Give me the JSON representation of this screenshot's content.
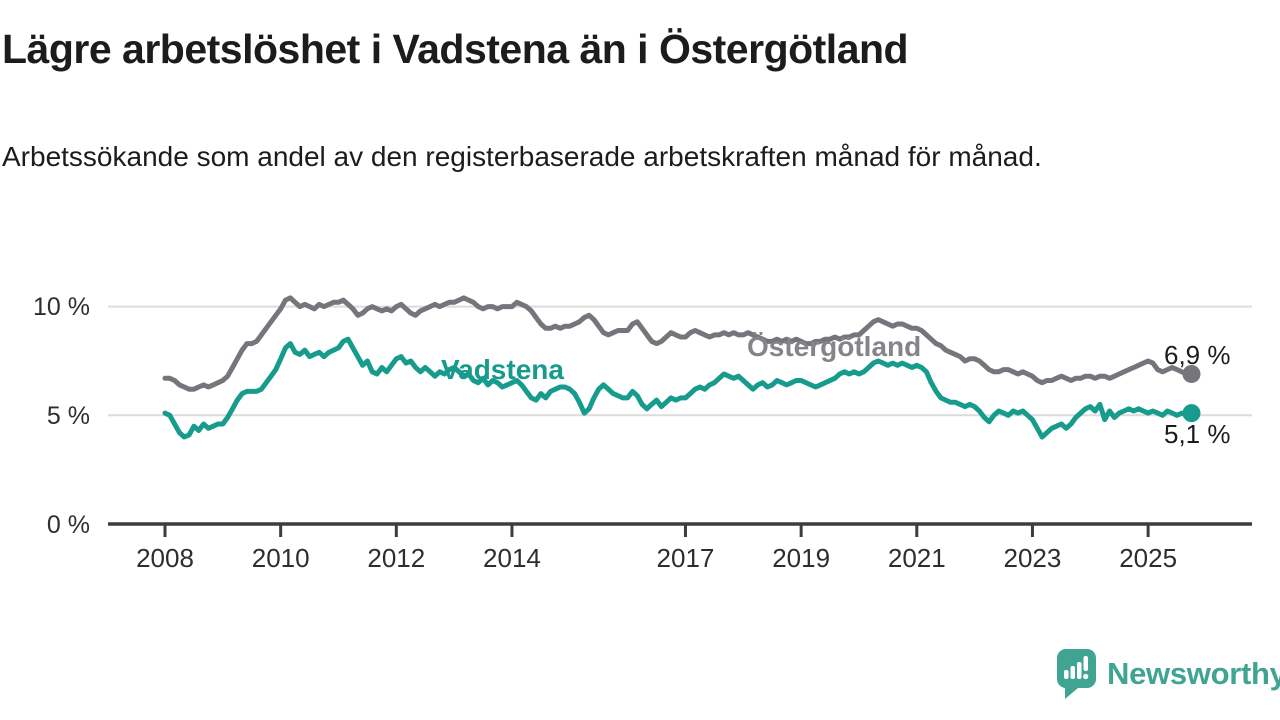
{
  "header": {
    "title": "Lägre arbetslöshet i Vadstena än i Östergötland",
    "subtitle": "Arbetssökande som andel av den registerbaserade arbetskraften månad för månad."
  },
  "branding": {
    "logo_text": "Newsworthy",
    "logo_icon": "speech-bubble-bar-chart-icon",
    "logo_color": "#3fa492"
  },
  "colors": {
    "vadstena": "#169b8c",
    "ostergotland_line": "#76757b",
    "ostergotland_label": "#85848b",
    "gridline": "#dcdcdc",
    "axis": "#3d3d3d",
    "text": "#1c1c1c"
  },
  "chart_data": {
    "type": "line",
    "unit": "%",
    "frequency": "monthly",
    "x_start": "2008-01",
    "x_end": "2025-10",
    "ylim": [
      0,
      11
    ],
    "grid_values": [
      5,
      10
    ],
    "y_tick_labels": [
      "10 %",
      "5 %",
      "0 %"
    ],
    "x_tick_years": [
      2008,
      2010,
      2012,
      2014,
      2017,
      2019,
      2021,
      2023,
      2025
    ],
    "x_tick_labels": [
      "2008",
      "2010",
      "2012",
      "2014",
      "2017",
      "2019",
      "2021",
      "2023",
      "2025"
    ],
    "series": [
      {
        "name": "Östergötland",
        "end_label": "6,9 %",
        "end_value": 6.9,
        "values": [
          6.7,
          6.7,
          6.6,
          6.4,
          6.3,
          6.2,
          6.2,
          6.3,
          6.4,
          6.3,
          6.4,
          6.5,
          6.6,
          6.8,
          7.2,
          7.6,
          8.0,
          8.3,
          8.3,
          8.4,
          8.7,
          9.0,
          9.3,
          9.6,
          9.9,
          10.3,
          10.4,
          10.2,
          10.0,
          10.1,
          10.0,
          9.9,
          10.1,
          10.0,
          10.1,
          10.2,
          10.2,
          10.3,
          10.1,
          9.9,
          9.6,
          9.7,
          9.9,
          10.0,
          9.9,
          9.8,
          9.9,
          9.8,
          10.0,
          10.1,
          9.9,
          9.7,
          9.6,
          9.8,
          9.9,
          10.0,
          10.1,
          10.0,
          10.1,
          10.2,
          10.2,
          10.3,
          10.4,
          10.3,
          10.2,
          10.0,
          9.9,
          10.0,
          10.0,
          9.9,
          10.0,
          10.0,
          10.0,
          10.2,
          10.1,
          10.0,
          9.8,
          9.5,
          9.2,
          9.0,
          9.0,
          9.1,
          9.0,
          9.1,
          9.1,
          9.2,
          9.3,
          9.5,
          9.6,
          9.4,
          9.1,
          8.8,
          8.7,
          8.8,
          8.9,
          8.9,
          8.9,
          9.2,
          9.3,
          9.0,
          8.7,
          8.4,
          8.3,
          8.4,
          8.6,
          8.8,
          8.7,
          8.6,
          8.6,
          8.8,
          8.9,
          8.8,
          8.7,
          8.6,
          8.7,
          8.7,
          8.8,
          8.7,
          8.8,
          8.7,
          8.7,
          8.8,
          8.7,
          8.6,
          8.5,
          8.4,
          8.4,
          8.5,
          8.4,
          8.5,
          8.4,
          8.5,
          8.4,
          8.3,
          8.3,
          8.4,
          8.4,
          8.5,
          8.5,
          8.6,
          8.5,
          8.6,
          8.6,
          8.7,
          8.7,
          8.9,
          9.1,
          9.3,
          9.4,
          9.3,
          9.2,
          9.1,
          9.2,
          9.2,
          9.1,
          9.0,
          9.0,
          8.9,
          8.7,
          8.5,
          8.3,
          8.2,
          8.0,
          7.9,
          7.8,
          7.7,
          7.5,
          7.6,
          7.6,
          7.5,
          7.3,
          7.1,
          7.0,
          7.0,
          7.1,
          7.1,
          7.0,
          6.9,
          7.0,
          6.9,
          6.8,
          6.6,
          6.5,
          6.6,
          6.6,
          6.7,
          6.8,
          6.7,
          6.6,
          6.7,
          6.7,
          6.8,
          6.8,
          6.7,
          6.8,
          6.8,
          6.7,
          6.8,
          6.9,
          7.0,
          7.1,
          7.2,
          7.3,
          7.4,
          7.5,
          7.4,
          7.1,
          7.0,
          7.1,
          7.2,
          7.1,
          7.0,
          6.9,
          6.9
        ]
      },
      {
        "name": "Vadstena",
        "end_label": "5,1 %",
        "end_value": 5.1,
        "values": [
          5.1,
          5.0,
          4.6,
          4.2,
          4.0,
          4.1,
          4.5,
          4.3,
          4.6,
          4.4,
          4.5,
          4.6,
          4.6,
          4.9,
          5.3,
          5.7,
          6.0,
          6.1,
          6.1,
          6.1,
          6.2,
          6.5,
          6.8,
          7.1,
          7.6,
          8.1,
          8.3,
          7.9,
          7.8,
          8.0,
          7.7,
          7.8,
          7.9,
          7.7,
          7.9,
          8.0,
          8.1,
          8.4,
          8.5,
          8.1,
          7.7,
          7.3,
          7.5,
          7.0,
          6.9,
          7.2,
          7.0,
          7.3,
          7.6,
          7.7,
          7.4,
          7.5,
          7.2,
          7.0,
          7.2,
          7.0,
          6.8,
          7.0,
          6.9,
          7.1,
          7.2,
          7.0,
          6.8,
          6.9,
          6.6,
          6.5,
          6.7,
          6.4,
          6.6,
          6.5,
          6.3,
          6.4,
          6.5,
          6.6,
          6.4,
          6.1,
          5.8,
          5.7,
          6.0,
          5.8,
          6.1,
          6.2,
          6.3,
          6.3,
          6.2,
          6.0,
          5.6,
          5.1,
          5.3,
          5.8,
          6.2,
          6.4,
          6.2,
          6.0,
          5.9,
          5.8,
          5.8,
          6.1,
          5.9,
          5.5,
          5.3,
          5.5,
          5.7,
          5.4,
          5.6,
          5.8,
          5.7,
          5.8,
          5.8,
          6.0,
          6.2,
          6.3,
          6.2,
          6.4,
          6.5,
          6.7,
          6.9,
          6.8,
          6.7,
          6.8,
          6.6,
          6.4,
          6.2,
          6.4,
          6.5,
          6.3,
          6.4,
          6.6,
          6.5,
          6.4,
          6.5,
          6.6,
          6.6,
          6.5,
          6.4,
          6.3,
          6.4,
          6.5,
          6.6,
          6.7,
          6.9,
          7.0,
          6.9,
          7.0,
          6.9,
          7.0,
          7.2,
          7.4,
          7.5,
          7.4,
          7.3,
          7.4,
          7.3,
          7.4,
          7.3,
          7.2,
          7.3,
          7.2,
          7.0,
          6.5,
          6.1,
          5.8,
          5.7,
          5.6,
          5.6,
          5.5,
          5.4,
          5.5,
          5.4,
          5.2,
          4.9,
          4.7,
          5.0,
          5.2,
          5.1,
          5.0,
          5.2,
          5.1,
          5.2,
          5.0,
          4.8,
          4.4,
          4.0,
          4.2,
          4.4,
          4.5,
          4.6,
          4.4,
          4.6,
          4.9,
          5.1,
          5.3,
          5.4,
          5.2,
          5.5,
          4.8,
          5.2,
          4.9,
          5.1,
          5.2,
          5.3,
          5.2,
          5.3,
          5.2,
          5.1,
          5.2,
          5.1,
          5.0,
          5.2,
          5.1,
          5.0,
          5.1,
          5.0,
          5.1
        ]
      }
    ]
  }
}
